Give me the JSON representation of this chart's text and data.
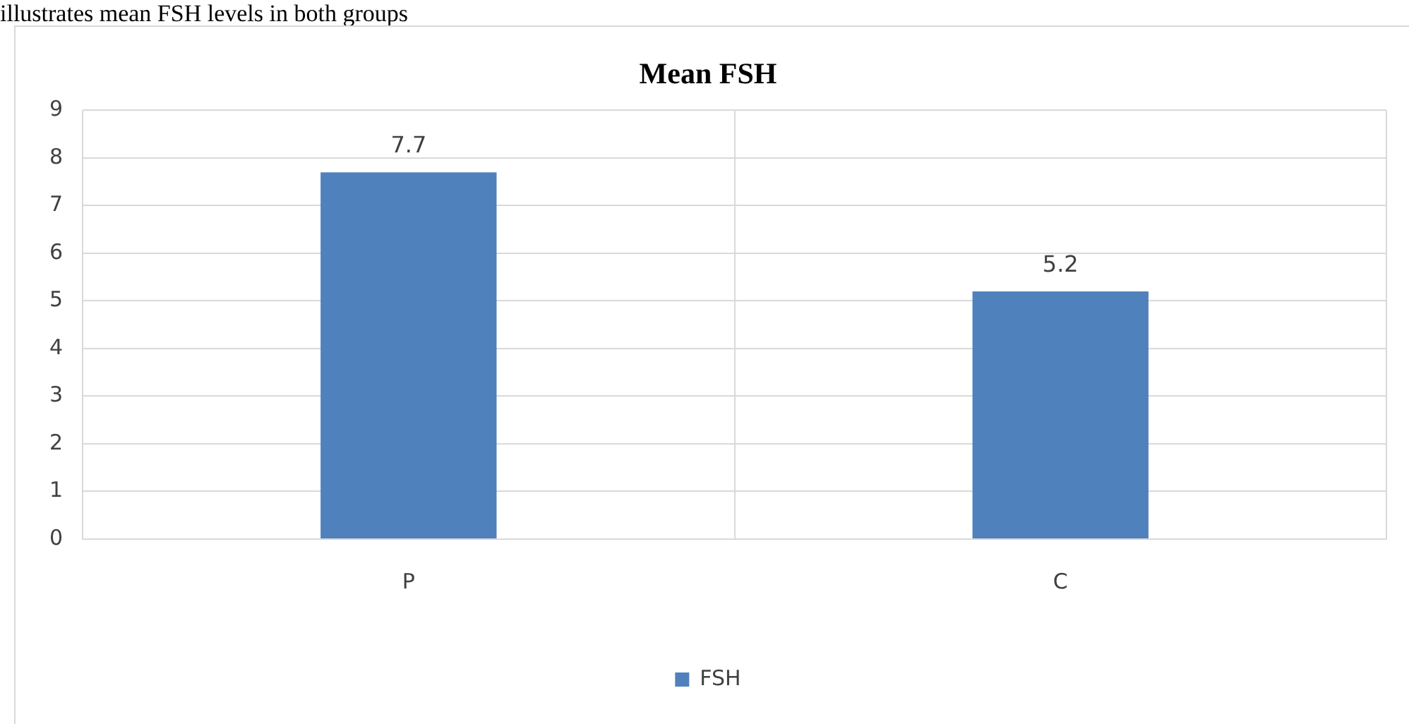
{
  "chart_data": {
    "type": "bar",
    "title": "Mean FSH",
    "annotations": [
      "illustrates mean FSH levels in both groups"
    ],
    "categories": [
      "P",
      "C"
    ],
    "series": [
      {
        "name": "FSH",
        "color": "#4f81bd",
        "values": [
          7.7,
          5.2
        ]
      }
    ],
    "ylim": [
      0,
      9
    ],
    "yticks": [
      0,
      1,
      2,
      3,
      4,
      5,
      6,
      7,
      8,
      9
    ],
    "grid": true,
    "legend": "bottom",
    "data_labels": true
  }
}
